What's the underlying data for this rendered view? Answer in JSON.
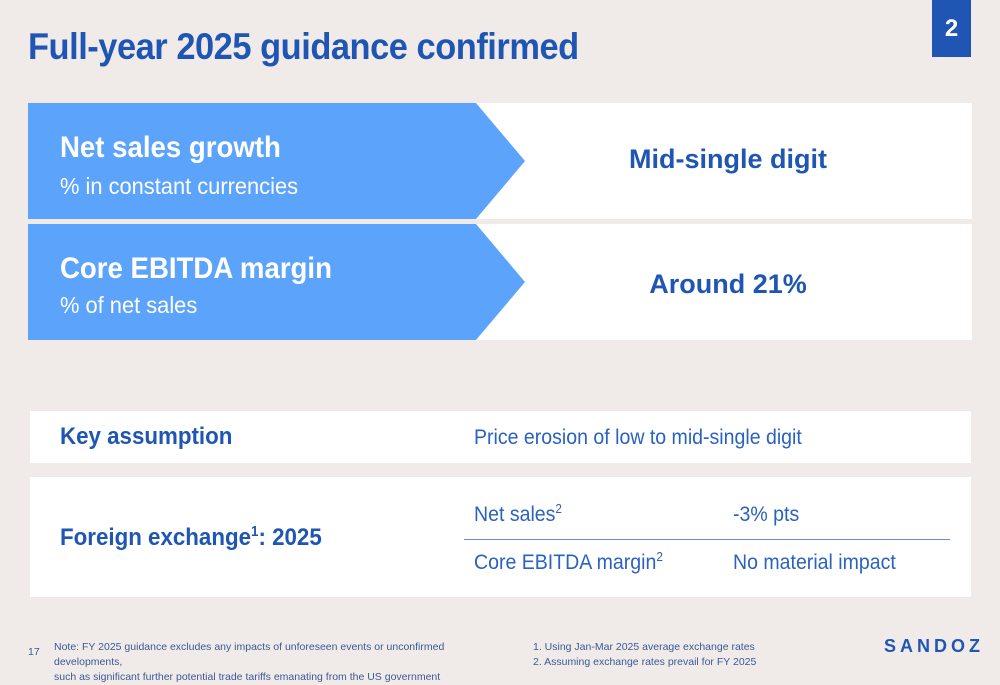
{
  "page": {
    "title": "Full-year 2025 guidance confirmed",
    "number": "2"
  },
  "guidance": [
    {
      "label": "Net sales growth",
      "sublabel": "% in constant currencies",
      "value": "Mid-single digit"
    },
    {
      "label": "Core EBITDA margin",
      "sublabel": "% of net sales",
      "value": "Around 21%"
    }
  ],
  "key_assumption": {
    "heading": "Key assumption",
    "text": "Price erosion of low to mid-single digit"
  },
  "foreign_exchange": {
    "heading": "Foreign exchange",
    "heading_sup": "1",
    "heading_suffix": ": 2025",
    "rows": [
      {
        "label": "Net sales",
        "sup": "2",
        "value": "-3% pts"
      },
      {
        "label": "Core EBITDA margin",
        "sup": "2",
        "value": "No material impact"
      }
    ]
  },
  "footer": {
    "slide_number": "17",
    "note_line1": "Note: FY 2025 guidance excludes any impacts of unforeseen events or unconfirmed developments,",
    "note_line2": "such as significant further potential trade tariffs emanating from the US government",
    "footnote1": "1. Using Jan-Mar 2025 average exchange rates",
    "footnote2": "2. Assuming exchange rates prevail for FY 2025",
    "logo": "SANDOZ"
  },
  "colors": {
    "background": "#f0ebe9",
    "brand_blue": "#1f56b3",
    "arrow_blue": "#5ca4fb",
    "panel": "#ffffff"
  }
}
